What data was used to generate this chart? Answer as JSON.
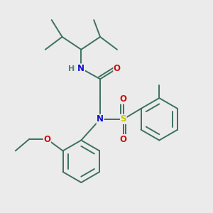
{
  "bg_color": "#ebebeb",
  "bond_color": "#3d7060",
  "atom_colors": {
    "N": "#1010cc",
    "O": "#cc1010",
    "S": "#c8c800",
    "H": "#508070",
    "C": "#3d7060"
  },
  "line_width": 1.4,
  "font_size": 8.5,
  "figsize": [
    3.0,
    3.0
  ],
  "dpi": 100
}
